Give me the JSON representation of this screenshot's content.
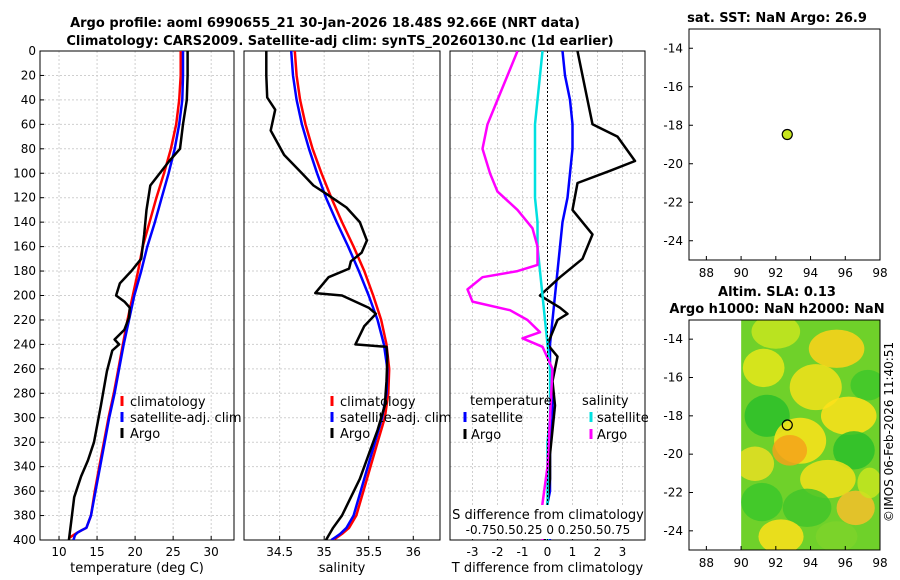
{
  "titles": {
    "line1": "Argo profile: aoml 6990655_21 30-Jan-2026 18.48S 92.66E (NRT data)",
    "line2": "Climatology: CARS2009. Satellite-adj clim: synTS_20260130.nc (1d earlier)"
  },
  "sst_title": "sat. SST: NaN Argo: 26.9",
  "altim_title1": "Altim. SLA: 0.13",
  "altim_title2": "Argo h1000: NaN h2000: NaN",
  "watermark": "©IMOS 06-Feb-2026 11:40:51",
  "colors": {
    "climatology": "#ff0000",
    "satellite": "#0000ff",
    "argo": "#000000",
    "sat_sal": "#00e0e0",
    "argo_sal": "#ff00ff",
    "marker": "#c8e61e"
  },
  "chart_data": [
    {
      "id": "temperature",
      "type": "line",
      "xlabel": "temperature (deg C)",
      "ylabel": "depth",
      "xlim": [
        7.5,
        33
      ],
      "ylim": [
        0,
        400
      ],
      "xticks": [
        10,
        15,
        20,
        25,
        30
      ],
      "yticks": [
        0,
        20,
        40,
        60,
        80,
        100,
        120,
        140,
        160,
        180,
        200,
        220,
        240,
        260,
        280,
        300,
        320,
        340,
        360,
        380,
        400
      ],
      "legend": [
        "climatology",
        "satellite-adj. clim",
        "Argo"
      ],
      "series": [
        {
          "name": "climatology",
          "color": "climatology",
          "x": [
            26.0,
            26.0,
            25.8,
            25.4,
            24.7,
            23.8,
            22.8,
            21.9,
            21.0,
            20.4,
            19.7,
            19.0,
            18.4,
            17.8,
            17.2,
            16.5,
            15.9,
            15.3,
            14.7,
            14.2,
            13.6,
            13.0,
            12.4,
            11.9,
            11.4
          ],
          "y": [
            0,
            20,
            40,
            60,
            80,
            100,
            120,
            140,
            160,
            180,
            200,
            220,
            240,
            260,
            280,
            300,
            320,
            340,
            360,
            380,
            390,
            392,
            394,
            396,
            398
          ]
        },
        {
          "name": "satellite-adj. clim",
          "color": "satellite",
          "x": [
            26.3,
            26.3,
            26.2,
            25.8,
            25.2,
            24.4,
            23.5,
            22.6,
            21.6,
            20.8,
            19.9,
            19.2,
            18.5,
            17.9,
            17.3,
            16.6,
            16.0,
            15.4,
            14.8,
            14.2,
            13.6,
            13.0,
            12.4,
            12.1,
            11.9
          ],
          "y": [
            0,
            20,
            40,
            60,
            80,
            100,
            120,
            140,
            160,
            180,
            200,
            220,
            240,
            260,
            280,
            300,
            320,
            340,
            360,
            380,
            390,
            392,
            394,
            396,
            400
          ]
        },
        {
          "name": "Argo",
          "color": "argo",
          "x": [
            26.9,
            26.9,
            26.8,
            26.3,
            25.9,
            24.5,
            22.0,
            21.5,
            21.2,
            20.8,
            19.5,
            18.0,
            17.5,
            18.6,
            19.3,
            19.2,
            18.6,
            17.3,
            17.9,
            17.0,
            16.3,
            15.5,
            14.6,
            13.8,
            12.9,
            12.0,
            11.6,
            11.3
          ],
          "y": [
            0,
            20,
            40,
            60,
            80,
            90,
            110,
            130,
            150,
            170,
            180,
            190,
            200,
            205,
            210,
            218,
            228,
            236,
            240,
            245,
            262,
            290,
            320,
            335,
            348,
            365,
            385,
            400
          ]
        }
      ]
    },
    {
      "id": "salinity",
      "type": "line",
      "xlabel": "salinity",
      "xlim": [
        34.1,
        36.3
      ],
      "ylim": [
        0,
        400
      ],
      "xticks": [
        34.5,
        35,
        35.5,
        36
      ],
      "legend": [
        "climatology",
        "satellite-adj. clim",
        "Argo"
      ],
      "series": [
        {
          "name": "climatology",
          "color": "climatology",
          "x": [
            34.67,
            34.69,
            34.73,
            34.79,
            34.87,
            34.97,
            35.08,
            35.2,
            35.33,
            35.45,
            35.55,
            35.64,
            35.7,
            35.73,
            35.72,
            35.68,
            35.6,
            35.52,
            35.44,
            35.36,
            35.28,
            35.2,
            35.14,
            35.09
          ],
          "y": [
            0,
            20,
            40,
            60,
            80,
            100,
            120,
            140,
            160,
            180,
            200,
            220,
            240,
            260,
            280,
            300,
            320,
            340,
            360,
            380,
            390,
            395,
            398,
            400
          ]
        },
        {
          "name": "satellite-adj. clim",
          "color": "satellite",
          "x": [
            34.63,
            34.65,
            34.69,
            34.75,
            34.83,
            34.92,
            35.02,
            35.14,
            35.27,
            35.39,
            35.5,
            35.6,
            35.67,
            35.71,
            35.7,
            35.65,
            35.57,
            35.49,
            35.41,
            35.33,
            35.25,
            35.18,
            35.12,
            35.08
          ],
          "y": [
            0,
            20,
            40,
            60,
            80,
            100,
            120,
            140,
            160,
            180,
            200,
            220,
            240,
            260,
            280,
            300,
            320,
            340,
            360,
            380,
            390,
            395,
            398,
            400
          ]
        },
        {
          "name": "Argo",
          "color": "argo",
          "x": [
            34.35,
            34.35,
            34.36,
            34.45,
            34.4,
            34.55,
            34.75,
            34.88,
            35.05,
            35.25,
            35.4,
            35.48,
            35.42,
            35.3,
            35.28,
            35.05,
            34.9,
            35.2,
            35.5,
            35.58,
            35.45,
            35.35,
            35.7,
            35.71,
            35.7,
            35.68,
            35.6,
            35.5,
            35.4,
            35.3,
            35.2,
            35.1,
            35.02
          ],
          "y": [
            0,
            20,
            38,
            48,
            65,
            85,
            100,
            110,
            118,
            128,
            140,
            155,
            165,
            172,
            178,
            185,
            198,
            200,
            210,
            215,
            225,
            240,
            242,
            250,
            270,
            290,
            310,
            330,
            350,
            365,
            380,
            390,
            400
          ]
        }
      ]
    },
    {
      "id": "difference",
      "type": "line",
      "xlabel": "T difference from climatology",
      "top_label": "S difference from climatology",
      "top_ticks": "-0.750.50.25 0  0.250.50.75",
      "xlim": [
        -3.9,
        3.9
      ],
      "ylim": [
        0,
        400
      ],
      "xticks": [
        -3,
        -2,
        -1,
        0,
        1,
        2,
        3
      ],
      "legend_headers": [
        "temperature",
        "salinity"
      ],
      "legend_left": [
        "satellite",
        "Argo"
      ],
      "legend_right": [
        "satellite",
        "Argo"
      ],
      "series": [
        {
          "name": "T satellite",
          "color": "satellite",
          "x": [
            0.6,
            0.7,
            0.9,
            1.0,
            1.0,
            0.9,
            0.8,
            0.6,
            0.5,
            0.4,
            0.3,
            0.2,
            0.1,
            0.1,
            0.2,
            0.2,
            0.1,
            0.1,
            0.1,
            0.0,
            0.0,
            0.0,
            0.1
          ],
          "y": [
            0,
            20,
            40,
            60,
            80,
            100,
            120,
            140,
            160,
            180,
            200,
            220,
            240,
            260,
            280,
            300,
            320,
            340,
            360,
            370,
            380,
            390,
            400
          ]
        },
        {
          "name": "T Argo",
          "color": "argo",
          "x": [
            1.2,
            1.5,
            1.8,
            2.8,
            3.5,
            2.5,
            1.2,
            1.0,
            1.8,
            1.4,
            0.5,
            -0.3,
            0.5,
            0.8,
            0.4,
            0.0,
            0.4,
            0.2,
            0.3,
            0.2,
            0.1,
            0.1,
            0.0,
            -0.1,
            -0.2,
            -0.1
          ],
          "y": [
            0,
            30,
            60,
            70,
            90,
            98,
            108,
            130,
            150,
            170,
            185,
            200,
            210,
            215,
            220,
            240,
            250,
            270,
            290,
            310,
            330,
            350,
            370,
            380,
            390,
            400
          ]
        },
        {
          "name": "S satellite",
          "color": "sat_sal",
          "x": [
            -0.2,
            -0.3,
            -0.4,
            -0.5,
            -0.5,
            -0.5,
            -0.5,
            -0.4,
            -0.4,
            -0.3,
            -0.2,
            -0.1,
            0.0,
            0.1,
            0.1,
            0.1,
            0.0,
            0.0,
            0.0,
            0.0
          ],
          "y": [
            0,
            20,
            40,
            60,
            80,
            100,
            120,
            140,
            160,
            180,
            200,
            220,
            240,
            260,
            280,
            300,
            320,
            340,
            380,
            400
          ]
        },
        {
          "name": "S Argo",
          "color": "argo_sal",
          "x": [
            -1.2,
            -1.6,
            -2.0,
            -2.4,
            -2.6,
            -2.3,
            -2.0,
            -1.2,
            -0.6,
            -0.4,
            -0.4,
            -1.2,
            -2.6,
            -3.2,
            -3.0,
            -1.5,
            -0.8,
            -0.3,
            -1.0,
            -0.2,
            0.2,
            0.1,
            0.0,
            -0.2,
            -0.3,
            -0.2
          ],
          "y": [
            0,
            20,
            40,
            60,
            80,
            100,
            115,
            130,
            145,
            160,
            175,
            180,
            185,
            195,
            205,
            212,
            220,
            230,
            235,
            242,
            260,
            300,
            340,
            370,
            390,
            400
          ]
        }
      ]
    },
    {
      "id": "sst_map",
      "type": "scatter",
      "xlim": [
        87,
        98
      ],
      "ylim": [
        -25,
        -13
      ],
      "xticks": [
        88,
        90,
        92,
        94,
        96,
        98
      ],
      "yticks": [
        -14,
        -16,
        -18,
        -20,
        -22,
        -24
      ],
      "points": [
        {
          "lon": 92.66,
          "lat": -18.48
        }
      ]
    },
    {
      "id": "altim_map",
      "type": "heatmap",
      "xlim": [
        87,
        98
      ],
      "ylim": [
        -25,
        -13
      ],
      "xticks": [
        88,
        90,
        92,
        94,
        96,
        98
      ],
      "yticks": [
        -14,
        -16,
        -18,
        -20,
        -22,
        -24
      ],
      "data_lon_range": [
        90,
        98
      ],
      "points": [
        {
          "lon": 92.66,
          "lat": -18.48
        }
      ]
    }
  ]
}
